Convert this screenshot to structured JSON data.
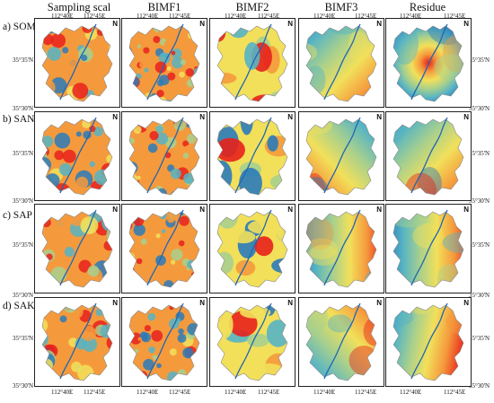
{
  "columns": [
    "Sampling scal",
    "BIMF1",
    "BIMF2",
    "BIMF3",
    "Residue"
  ],
  "rows": [
    {
      "label": "a) SOM"
    },
    {
      "label": "b) SAN"
    },
    {
      "label": "c) SAP"
    },
    {
      "label": "d) SAK"
    }
  ],
  "ticks": {
    "lon_left": "112°40E",
    "lon_right": "112°45E",
    "lat_top": "35°35'N",
    "lat_bottom": "35°30'N"
  },
  "north_label": "N",
  "palette": {
    "red": "#e8211c",
    "orange": "#f59a3c",
    "yellow": "#f2e05a",
    "green": "#a8d08d",
    "teal": "#56b4c4",
    "blue": "#2b7bba",
    "river": "#1f66b5"
  }
}
